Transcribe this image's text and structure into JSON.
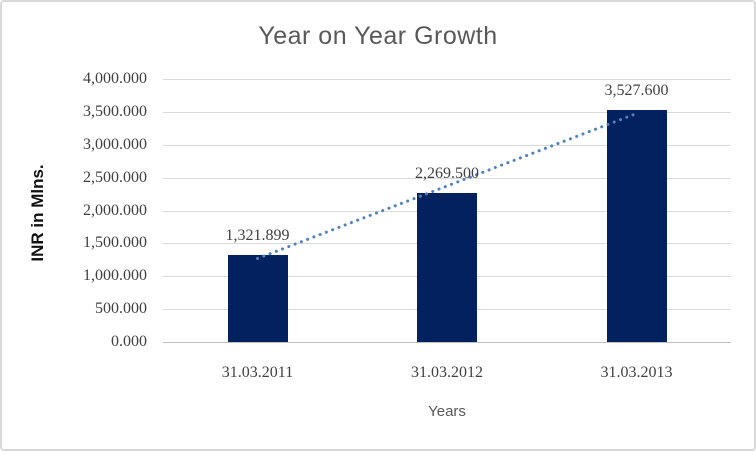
{
  "chart": {
    "title": "Year on Year Growth",
    "y_axis_title": "INR in Mlns.",
    "x_axis_title": "Years"
  },
  "chart_data": {
    "type": "bar",
    "title": "Year on Year Growth",
    "xlabel": "Years",
    "ylabel": "INR in Mlns.",
    "categories": [
      "31.03.2011",
      "31.03.2012",
      "31.03.2013"
    ],
    "values": [
      1321.899,
      2269.5,
      3527.6
    ],
    "data_labels": [
      "1,321.899",
      "2,269.500",
      "3,527.600"
    ],
    "ylim": [
      0,
      4000
    ],
    "ytick_step": 500,
    "ytick_labels": [
      "0.000",
      "500.000",
      "1,000.000",
      "1,500.000",
      "2,000.000",
      "2,500.000",
      "3,000.000",
      "3,500.000",
      "4,000.000"
    ],
    "grid": true,
    "legend": false,
    "trendline": {
      "type": "linear",
      "style": "dotted",
      "color": "#4f81bd"
    },
    "colors": {
      "bar": "#03215f",
      "gridline": "#d9d9d9",
      "axis_line": "#bfbfbf",
      "title_text": "#595959",
      "tick_text": "#3f3f3f",
      "trendline": "#4f81bd"
    }
  }
}
